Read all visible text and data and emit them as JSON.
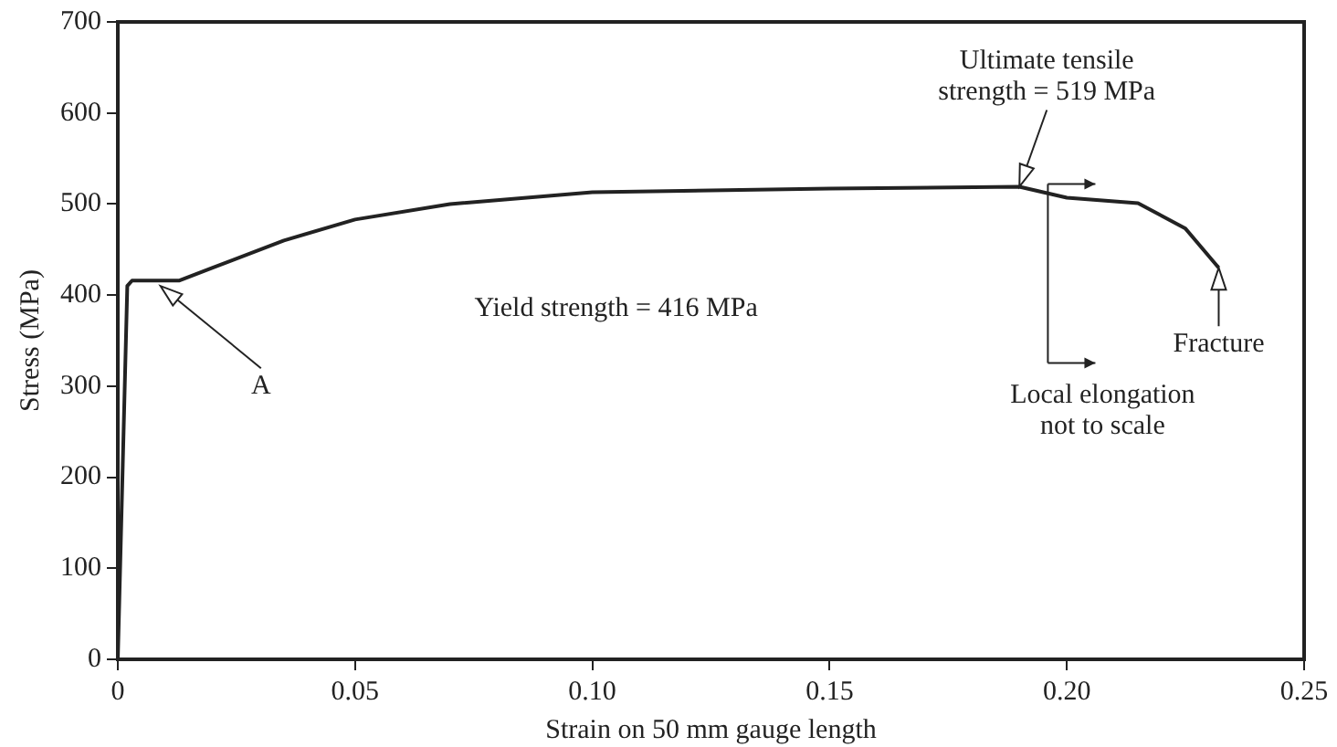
{
  "chart_data": {
    "type": "line",
    "xlabel": "Strain on 50 mm gauge length",
    "ylabel": "Stress (MPa)",
    "x": [
      0,
      0.002,
      0.003,
      0.008,
      0.013,
      0.02,
      0.035,
      0.05,
      0.07,
      0.1,
      0.15,
      0.19,
      0.2,
      0.215,
      0.225,
      0.232
    ],
    "series": [
      {
        "color": "#222222",
        "values": [
          0,
          410,
          416,
          416,
          416,
          430,
          460,
          483,
          500,
          513,
          517,
          519,
          507,
          501,
          473,
          430
        ]
      }
    ],
    "xlim": [
      0,
      0.25
    ],
    "xticks": [
      0,
      0.05,
      {
        "value": 0.1,
        "label": "0.10"
      },
      0.15,
      {
        "value": 0.2,
        "label": "0.20"
      },
      0.25
    ],
    "ylim": [
      0,
      700
    ],
    "yticks": [
      0,
      100,
      200,
      300,
      400,
      500,
      600,
      700
    ],
    "grid": false,
    "legend": false,
    "marker": "none",
    "line_style": "solid",
    "annotations": [
      {
        "text": "Ultimate tensile strength = 519 MPa",
        "x": 0.19,
        "y": 519
      },
      "Yield strength = 416 MPa",
      {
        "text": "A",
        "x": 0.009,
        "y": 410
      },
      {
        "text": "Fracture",
        "x": 0.232,
        "y": 430
      },
      {
        "text": "Local elongation not to scale",
        "x": 0.196,
        "y": 516
      }
    ]
  }
}
